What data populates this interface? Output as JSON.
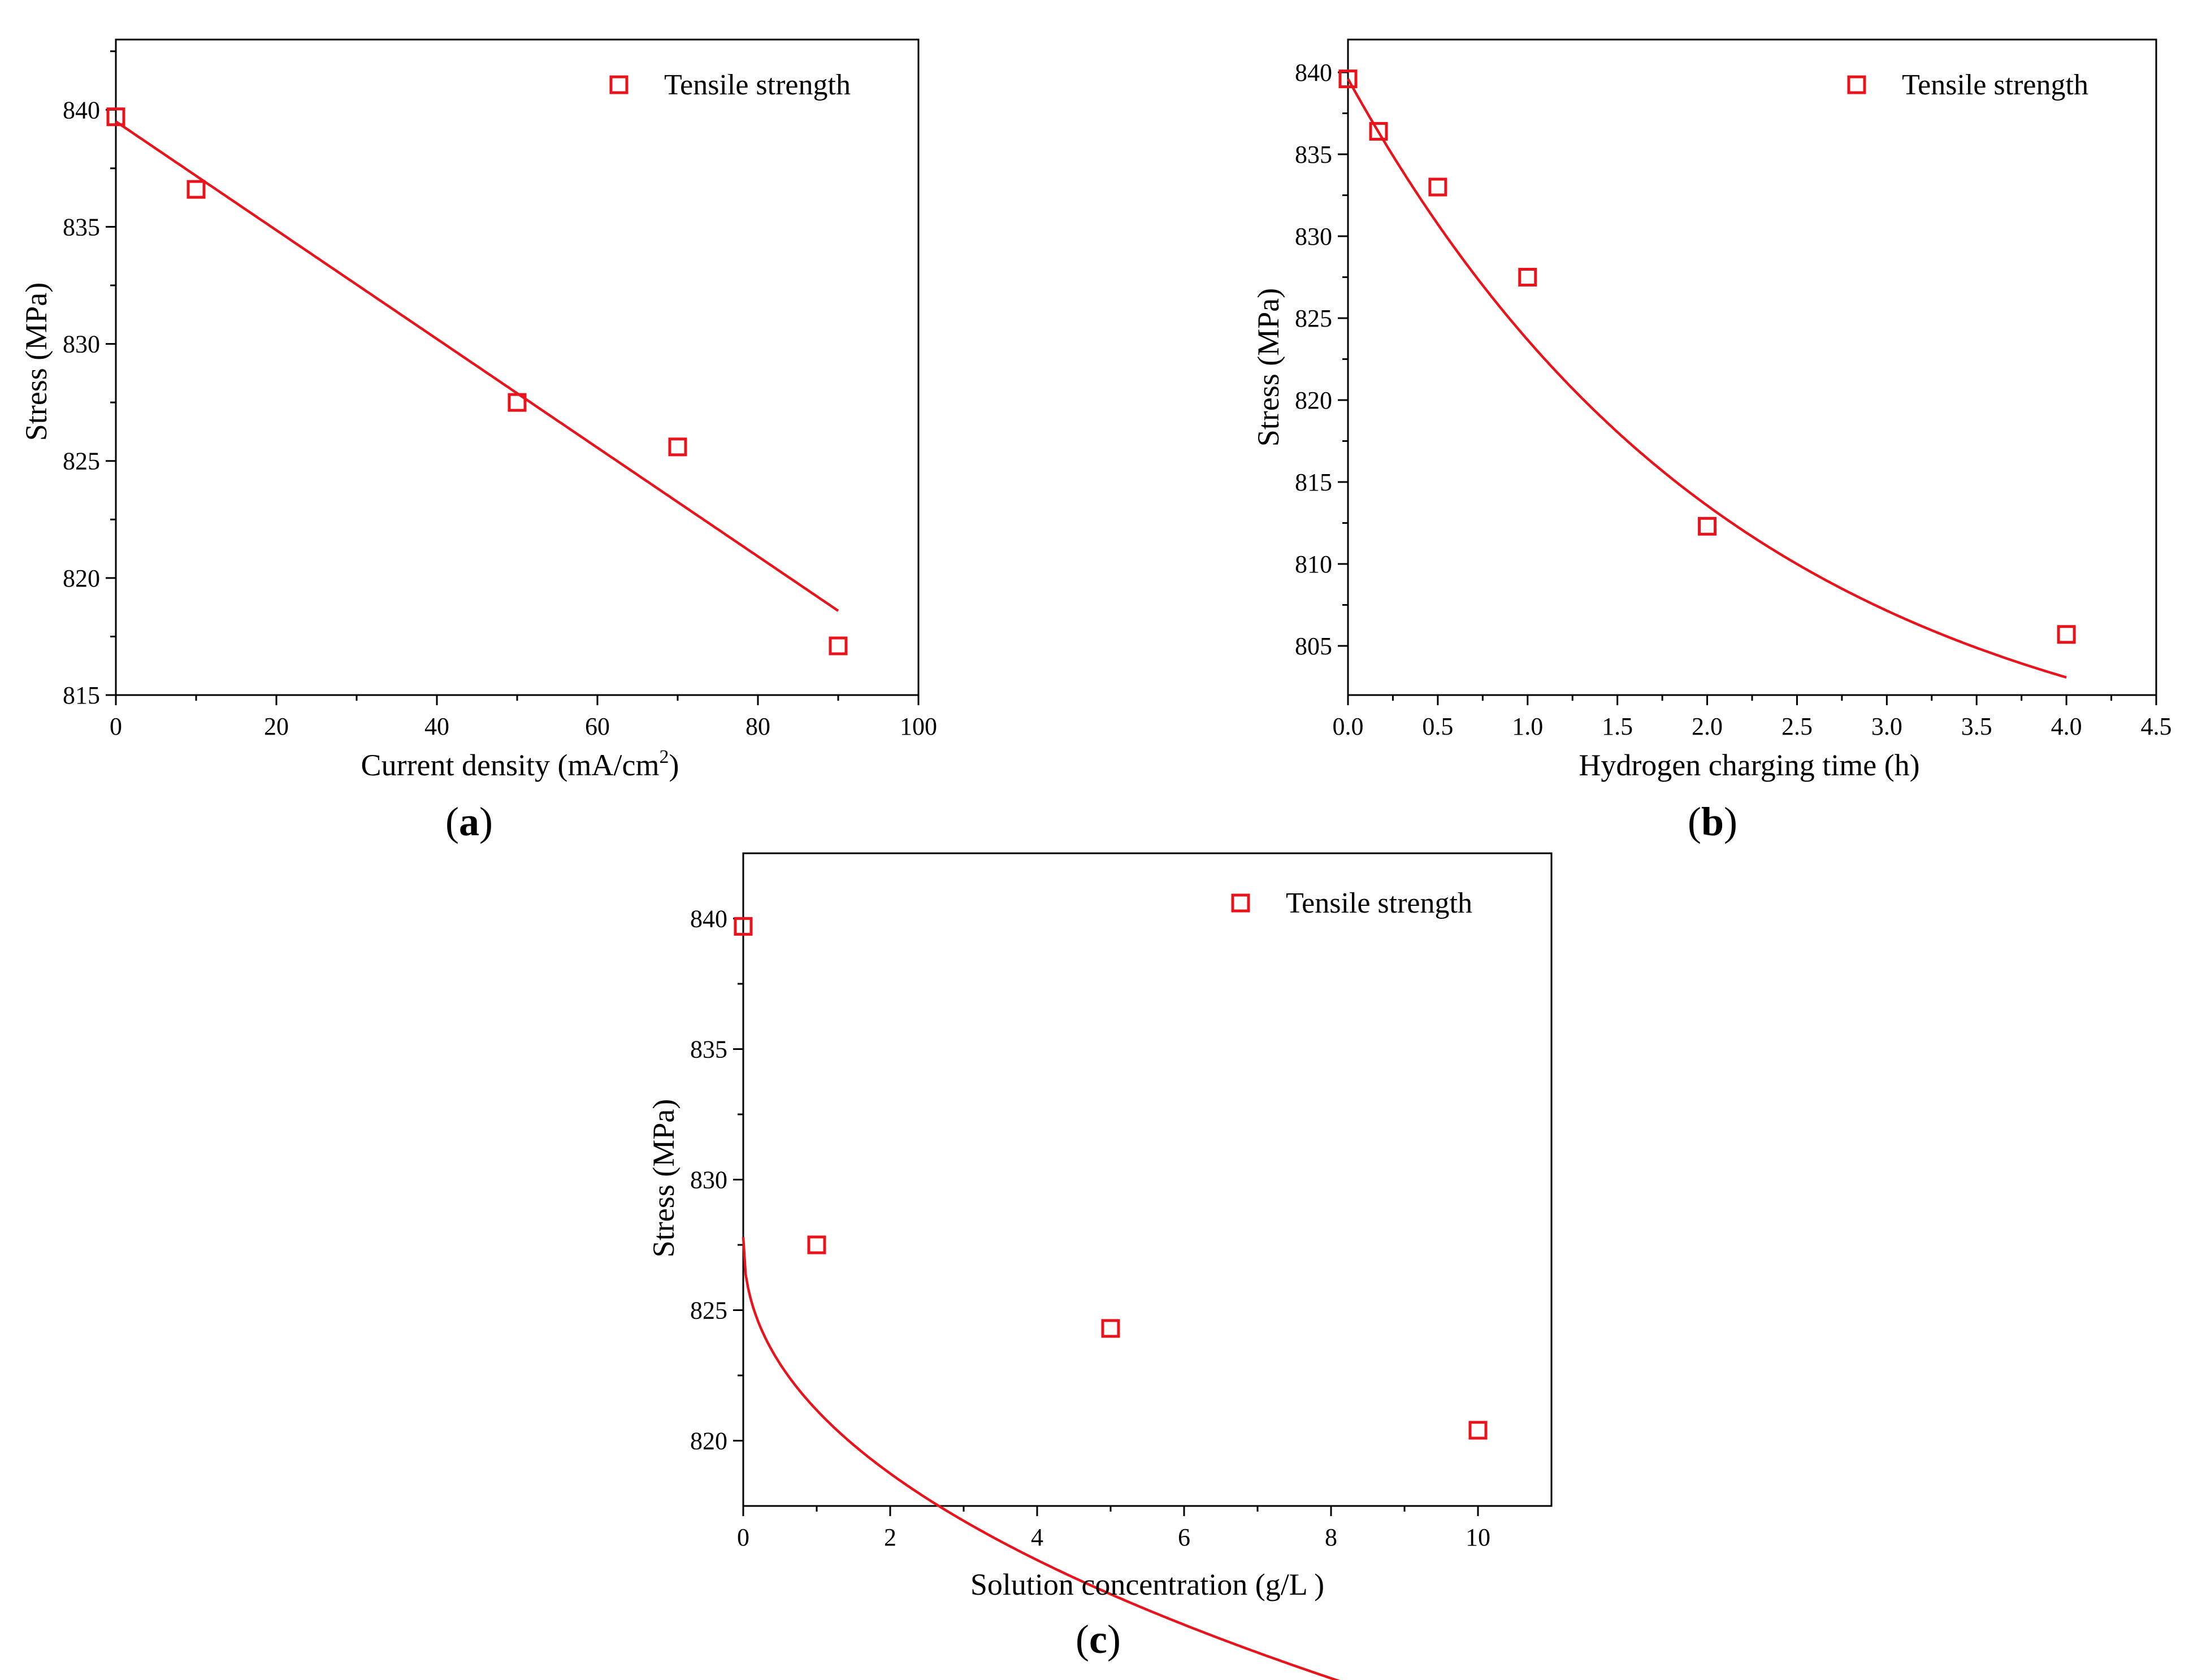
{
  "marker_color": "#e8131b",
  "line_color": "#e8131b",
  "chart_data": [
    {
      "id": "a",
      "type": "scatter",
      "caption_letter": "a",
      "xlabel": "Current density (mA/cm",
      "xlabel_sup": "2",
      "xlabel_tail": ")",
      "ylabel": "Stress (MPa)",
      "legend": "Tensile strength",
      "xlim": [
        0,
        100
      ],
      "ylim": [
        815,
        843
      ],
      "xticks": [
        0,
        20,
        40,
        60,
        80,
        100
      ],
      "yticks": [
        815,
        820,
        825,
        830,
        835,
        840
      ],
      "xtick_labels": [
        "0",
        "20",
        "40",
        "60",
        "80",
        "100"
      ],
      "ytick_labels": [
        "815",
        "820",
        "825",
        "830",
        "835",
        "840"
      ],
      "x": [
        0,
        10,
        50,
        70,
        90
      ],
      "y": [
        839.7,
        836.6,
        827.5,
        825.6,
        817.1
      ],
      "fit": {
        "kind": "linear",
        "x0": 0,
        "x1": 90,
        "y0": 839.5,
        "y1": 818.6
      }
    },
    {
      "id": "b",
      "type": "scatter",
      "caption_letter": "b",
      "xlabel": "Hydrogen charging time (h)",
      "ylabel": "Stress (MPa)",
      "legend": "Tensile strength",
      "xlim": [
        0,
        4.5
      ],
      "ylim": [
        802,
        842
      ],
      "xticks": [
        0,
        0.5,
        1,
        1.5,
        2,
        2.5,
        3,
        3.5,
        4,
        4.5
      ],
      "yticks": [
        805,
        810,
        815,
        820,
        825,
        830,
        835,
        840
      ],
      "xtick_labels": [
        "0.0",
        "0.5",
        "1.0",
        "1.5",
        "2.0",
        "2.5",
        "3.0",
        "3.5",
        "4.0",
        "4.5"
      ],
      "ytick_labels": [
        "805",
        "810",
        "815",
        "820",
        "825",
        "830",
        "835",
        "840"
      ],
      "x": [
        0,
        0.17,
        0.5,
        1.0,
        2.0,
        4.0
      ],
      "y": [
        839.6,
        836.4,
        833.0,
        827.5,
        812.3,
        805.7
      ],
      "fit": {
        "kind": "exp",
        "x0": 0,
        "x1": 4.0,
        "A": 43.6,
        "tau": 2.2,
        "y0": 796.0
      }
    },
    {
      "id": "c",
      "type": "scatter",
      "caption_letter": "c",
      "xlabel": "Solution concentration (g/L )",
      "ylabel": "Stress (MPa)",
      "legend": "Tensile strength",
      "xlim": [
        0,
        11
      ],
      "ylim": [
        817.5,
        842.5
      ],
      "xticks": [
        0,
        2,
        4,
        6,
        8,
        10
      ],
      "yticks": [
        820,
        825,
        830,
        835,
        840
      ],
      "xtick_labels": [
        "0",
        "2",
        "4",
        "6",
        "8",
        "10"
      ],
      "ytick_labels": [
        "820",
        "825",
        "830",
        "835",
        "840"
      ],
      "x": [
        0,
        1,
        5,
        10
      ],
      "y": [
        839.7,
        827.5,
        824.3,
        820.4
      ],
      "fit": {
        "kind": "power",
        "x0": 0,
        "x1": 10,
        "A": 827.8,
        "B": 6.63,
        "p": 0.45,
        "ymax": 840.0
      }
    }
  ]
}
